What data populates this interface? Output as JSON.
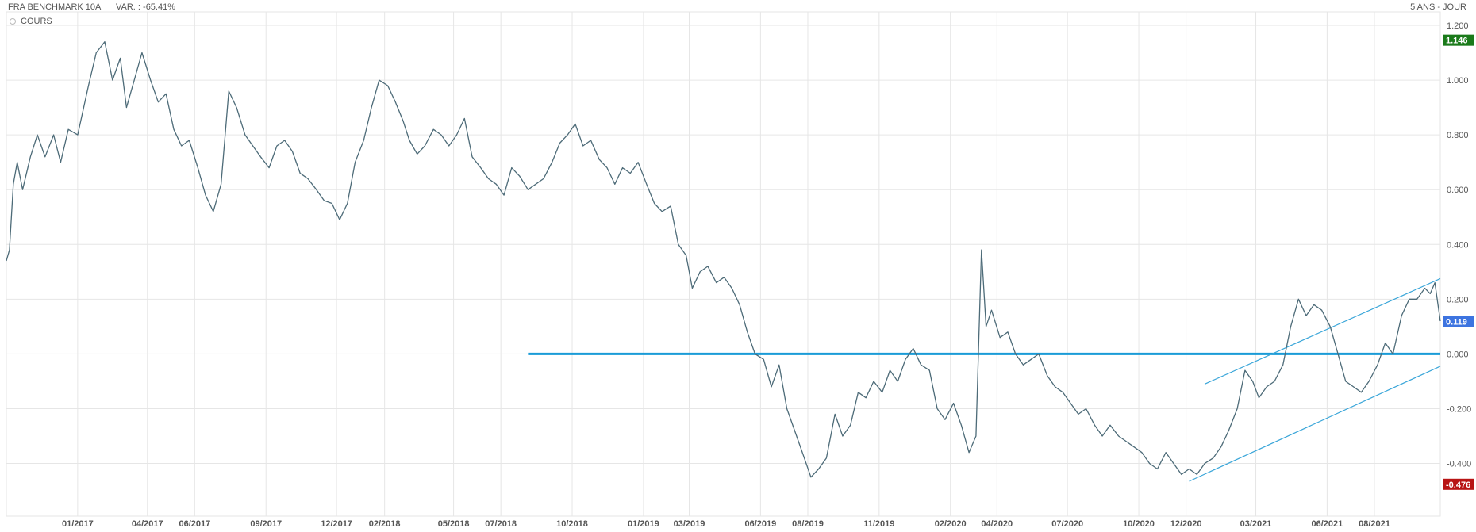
{
  "header": {
    "title": "FRA BENCHMARK 10A",
    "variation": "VAR. : -65.41%",
    "period": "5 ANS - JOUR"
  },
  "legend": {
    "label": "COURS"
  },
  "colors": {
    "series": "#4d6b78",
    "trend_horizontal": "#1a9bd7",
    "trend_channel": "#3aa6d9",
    "grid": "#e6e6e6",
    "badge_max": "#1a7a1a",
    "badge_last": "#3d74e0",
    "badge_min": "#b81414"
  },
  "badges": {
    "max": {
      "label": "1.146",
      "value": 1.146
    },
    "last": {
      "label": "0.119",
      "value": 0.119
    },
    "min": {
      "label": "-0.476",
      "value": -0.476
    }
  },
  "chart_data": {
    "type": "line",
    "ylim": [
      -0.52,
      1.2
    ],
    "xlim": [
      "2016-10-01",
      "2021-10-25"
    ],
    "grid": true,
    "y_ticks": [
      {
        "value": 1.2,
        "label": "1.200"
      },
      {
        "value": 1.0,
        "label": "1.000"
      },
      {
        "value": 0.8,
        "label": "0.800"
      },
      {
        "value": 0.6,
        "label": "0.600"
      },
      {
        "value": 0.4,
        "label": "0.400"
      },
      {
        "value": 0.2,
        "label": "0.200"
      },
      {
        "value": 0.0,
        "label": "0.000"
      },
      {
        "value": -0.2,
        "label": "-0.200"
      },
      {
        "value": -0.4,
        "label": "-0.400"
      }
    ],
    "x_ticks": [
      {
        "date": "2017-01-01",
        "label": "01/2017"
      },
      {
        "date": "2017-04-01",
        "label": "04/2017"
      },
      {
        "date": "2017-06-01",
        "label": "06/2017"
      },
      {
        "date": "2017-09-01",
        "label": "09/2017"
      },
      {
        "date": "2017-12-01",
        "label": "12/2017"
      },
      {
        "date": "2018-02-01",
        "label": "02/2018"
      },
      {
        "date": "2018-05-01",
        "label": "05/2018"
      },
      {
        "date": "2018-07-01",
        "label": "07/2018"
      },
      {
        "date": "2018-10-01",
        "label": "10/2018"
      },
      {
        "date": "2019-01-01",
        "label": "01/2019"
      },
      {
        "date": "2019-03-01",
        "label": "03/2019"
      },
      {
        "date": "2019-06-01",
        "label": "06/2019"
      },
      {
        "date": "2019-08-01",
        "label": "08/2019"
      },
      {
        "date": "2019-11-01",
        "label": "11/2019"
      },
      {
        "date": "2020-02-01",
        "label": "02/2020"
      },
      {
        "date": "2020-04-01",
        "label": "04/2020"
      },
      {
        "date": "2020-07-01",
        "label": "07/2020"
      },
      {
        "date": "2020-10-01",
        "label": "10/2020"
      },
      {
        "date": "2020-12-01",
        "label": "12/2020"
      },
      {
        "date": "2021-03-01",
        "label": "03/2021"
      },
      {
        "date": "2021-06-01",
        "label": "06/2021"
      },
      {
        "date": "2021-08-01",
        "label": "08/2021"
      }
    ],
    "series": [
      {
        "points": [
          [
            "2016-10-01",
            0.34
          ],
          [
            "2016-10-05",
            0.38
          ],
          [
            "2016-10-10",
            0.62
          ],
          [
            "2016-10-15",
            0.7
          ],
          [
            "2016-10-22",
            0.6
          ],
          [
            "2016-11-01",
            0.72
          ],
          [
            "2016-11-10",
            0.8
          ],
          [
            "2016-11-20",
            0.72
          ],
          [
            "2016-12-01",
            0.8
          ],
          [
            "2016-12-10",
            0.7
          ],
          [
            "2016-12-20",
            0.82
          ],
          [
            "2017-01-01",
            0.8
          ],
          [
            "2017-01-15",
            0.98
          ],
          [
            "2017-01-25",
            1.1
          ],
          [
            "2017-02-05",
            1.14
          ],
          [
            "2017-02-15",
            1.0
          ],
          [
            "2017-02-25",
            1.08
          ],
          [
            "2017-03-05",
            0.9
          ],
          [
            "2017-03-15",
            1.0
          ],
          [
            "2017-03-25",
            1.1
          ],
          [
            "2017-04-05",
            1.0
          ],
          [
            "2017-04-15",
            0.92
          ],
          [
            "2017-04-25",
            0.95
          ],
          [
            "2017-05-05",
            0.82
          ],
          [
            "2017-05-15",
            0.76
          ],
          [
            "2017-05-25",
            0.78
          ],
          [
            "2017-06-05",
            0.68
          ],
          [
            "2017-06-15",
            0.58
          ],
          [
            "2017-06-25",
            0.52
          ],
          [
            "2017-07-05",
            0.62
          ],
          [
            "2017-07-15",
            0.96
          ],
          [
            "2017-07-25",
            0.9
          ],
          [
            "2017-08-05",
            0.8
          ],
          [
            "2017-08-15",
            0.76
          ],
          [
            "2017-08-25",
            0.72
          ],
          [
            "2017-09-05",
            0.68
          ],
          [
            "2017-09-15",
            0.76
          ],
          [
            "2017-09-25",
            0.78
          ],
          [
            "2017-10-05",
            0.74
          ],
          [
            "2017-10-15",
            0.66
          ],
          [
            "2017-10-25",
            0.64
          ],
          [
            "2017-11-05",
            0.6
          ],
          [
            "2017-11-15",
            0.56
          ],
          [
            "2017-11-25",
            0.55
          ],
          [
            "2017-12-05",
            0.49
          ],
          [
            "2017-12-15",
            0.55
          ],
          [
            "2017-12-25",
            0.7
          ],
          [
            "2018-01-05",
            0.78
          ],
          [
            "2018-01-15",
            0.9
          ],
          [
            "2018-01-25",
            1.0
          ],
          [
            "2018-02-05",
            0.98
          ],
          [
            "2018-02-15",
            0.92
          ],
          [
            "2018-02-25",
            0.85
          ],
          [
            "2018-03-05",
            0.78
          ],
          [
            "2018-03-15",
            0.73
          ],
          [
            "2018-03-25",
            0.76
          ],
          [
            "2018-04-05",
            0.82
          ],
          [
            "2018-04-15",
            0.8
          ],
          [
            "2018-04-25",
            0.76
          ],
          [
            "2018-05-05",
            0.8
          ],
          [
            "2018-05-15",
            0.86
          ],
          [
            "2018-05-25",
            0.72
          ],
          [
            "2018-06-05",
            0.68
          ],
          [
            "2018-06-15",
            0.64
          ],
          [
            "2018-06-25",
            0.62
          ],
          [
            "2018-07-05",
            0.58
          ],
          [
            "2018-07-15",
            0.68
          ],
          [
            "2018-07-25",
            0.65
          ],
          [
            "2018-08-05",
            0.6
          ],
          [
            "2018-08-15",
            0.62
          ],
          [
            "2018-08-25",
            0.64
          ],
          [
            "2018-09-05",
            0.7
          ],
          [
            "2018-09-15",
            0.77
          ],
          [
            "2018-09-25",
            0.8
          ],
          [
            "2018-10-05",
            0.84
          ],
          [
            "2018-10-15",
            0.76
          ],
          [
            "2018-10-25",
            0.78
          ],
          [
            "2018-11-05",
            0.71
          ],
          [
            "2018-11-15",
            0.68
          ],
          [
            "2018-11-25",
            0.62
          ],
          [
            "2018-12-05",
            0.68
          ],
          [
            "2018-12-15",
            0.66
          ],
          [
            "2018-12-25",
            0.7
          ],
          [
            "2019-01-05",
            0.62
          ],
          [
            "2019-01-15",
            0.55
          ],
          [
            "2019-01-25",
            0.52
          ],
          [
            "2019-02-05",
            0.54
          ],
          [
            "2019-02-15",
            0.4
          ],
          [
            "2019-02-25",
            0.36
          ],
          [
            "2019-03-05",
            0.24
          ],
          [
            "2019-03-15",
            0.3
          ],
          [
            "2019-03-25",
            0.32
          ],
          [
            "2019-04-05",
            0.26
          ],
          [
            "2019-04-15",
            0.28
          ],
          [
            "2019-04-25",
            0.24
          ],
          [
            "2019-05-05",
            0.18
          ],
          [
            "2019-05-15",
            0.08
          ],
          [
            "2019-05-25",
            0.0
          ],
          [
            "2019-06-05",
            -0.02
          ],
          [
            "2019-06-15",
            -0.12
          ],
          [
            "2019-06-25",
            -0.04
          ],
          [
            "2019-07-05",
            -0.2
          ],
          [
            "2019-07-15",
            -0.28
          ],
          [
            "2019-07-25",
            -0.36
          ],
          [
            "2019-08-05",
            -0.45
          ],
          [
            "2019-08-15",
            -0.42
          ],
          [
            "2019-08-25",
            -0.38
          ],
          [
            "2019-09-05",
            -0.22
          ],
          [
            "2019-09-15",
            -0.3
          ],
          [
            "2019-09-25",
            -0.26
          ],
          [
            "2019-10-05",
            -0.14
          ],
          [
            "2019-10-15",
            -0.16
          ],
          [
            "2019-10-25",
            -0.1
          ],
          [
            "2019-11-05",
            -0.14
          ],
          [
            "2019-11-15",
            -0.06
          ],
          [
            "2019-11-25",
            -0.1
          ],
          [
            "2019-12-05",
            -0.02
          ],
          [
            "2019-12-15",
            0.02
          ],
          [
            "2019-12-25",
            -0.04
          ],
          [
            "2020-01-05",
            -0.06
          ],
          [
            "2020-01-15",
            -0.2
          ],
          [
            "2020-01-25",
            -0.24
          ],
          [
            "2020-02-05",
            -0.18
          ],
          [
            "2020-02-15",
            -0.26
          ],
          [
            "2020-02-25",
            -0.36
          ],
          [
            "2020-03-05",
            -0.3
          ],
          [
            "2020-03-12",
            0.38
          ],
          [
            "2020-03-18",
            0.1
          ],
          [
            "2020-03-25",
            0.16
          ],
          [
            "2020-04-05",
            0.06
          ],
          [
            "2020-04-15",
            0.08
          ],
          [
            "2020-04-25",
            0.0
          ],
          [
            "2020-05-05",
            -0.04
          ],
          [
            "2020-05-15",
            -0.02
          ],
          [
            "2020-05-25",
            0.0
          ],
          [
            "2020-06-05",
            -0.08
          ],
          [
            "2020-06-15",
            -0.12
          ],
          [
            "2020-06-25",
            -0.14
          ],
          [
            "2020-07-05",
            -0.18
          ],
          [
            "2020-07-15",
            -0.22
          ],
          [
            "2020-07-25",
            -0.2
          ],
          [
            "2020-08-05",
            -0.26
          ],
          [
            "2020-08-15",
            -0.3
          ],
          [
            "2020-08-25",
            -0.26
          ],
          [
            "2020-09-05",
            -0.3
          ],
          [
            "2020-09-15",
            -0.32
          ],
          [
            "2020-09-25",
            -0.34
          ],
          [
            "2020-10-05",
            -0.36
          ],
          [
            "2020-10-15",
            -0.4
          ],
          [
            "2020-10-25",
            -0.42
          ],
          [
            "2020-11-05",
            -0.36
          ],
          [
            "2020-11-15",
            -0.4
          ],
          [
            "2020-11-25",
            -0.44
          ],
          [
            "2020-12-05",
            -0.42
          ],
          [
            "2020-12-15",
            -0.44
          ],
          [
            "2020-12-25",
            -0.4
          ],
          [
            "2021-01-05",
            -0.38
          ],
          [
            "2021-01-15",
            -0.34
          ],
          [
            "2021-01-25",
            -0.28
          ],
          [
            "2021-02-05",
            -0.2
          ],
          [
            "2021-02-15",
            -0.06
          ],
          [
            "2021-02-25",
            -0.1
          ],
          [
            "2021-03-05",
            -0.16
          ],
          [
            "2021-03-15",
            -0.12
          ],
          [
            "2021-03-25",
            -0.1
          ],
          [
            "2021-04-05",
            -0.04
          ],
          [
            "2021-04-15",
            0.1
          ],
          [
            "2021-04-25",
            0.2
          ],
          [
            "2021-05-05",
            0.14
          ],
          [
            "2021-05-15",
            0.18
          ],
          [
            "2021-05-25",
            0.16
          ],
          [
            "2021-06-05",
            0.1
          ],
          [
            "2021-06-15",
            0.0
          ],
          [
            "2021-06-25",
            -0.1
          ],
          [
            "2021-07-05",
            -0.12
          ],
          [
            "2021-07-15",
            -0.14
          ],
          [
            "2021-07-25",
            -0.1
          ],
          [
            "2021-08-05",
            -0.04
          ],
          [
            "2021-08-15",
            0.04
          ],
          [
            "2021-08-25",
            0.0
          ],
          [
            "2021-09-05",
            0.14
          ],
          [
            "2021-09-15",
            0.2
          ],
          [
            "2021-09-25",
            0.2
          ],
          [
            "2021-10-05",
            0.24
          ],
          [
            "2021-10-12",
            0.22
          ],
          [
            "2021-10-18",
            0.26
          ],
          [
            "2021-10-25",
            0.12
          ]
        ]
      }
    ],
    "trendlines": [
      {
        "kind": "horizontal",
        "from": [
          "2018-08-05",
          0.0
        ],
        "to": [
          "2021-10-25",
          0.0
        ]
      },
      {
        "kind": "channel-upper",
        "from": [
          "2020-12-25",
          -0.11
        ],
        "to": [
          "2021-10-25",
          0.275
        ]
      },
      {
        "kind": "channel-lower",
        "from": [
          "2020-12-05",
          -0.465
        ],
        "to": [
          "2021-10-25",
          -0.045
        ]
      }
    ]
  }
}
